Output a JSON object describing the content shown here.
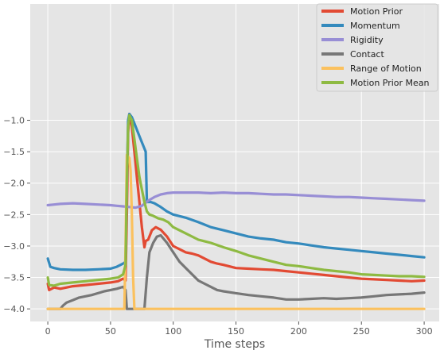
{
  "chart_data": {
    "type": "line",
    "title": "",
    "xlabel": "Time steps",
    "ylabel": "",
    "xlim": [
      -14,
      312
    ],
    "ylim": [
      -4.2,
      0.85
    ],
    "x_ticks": [
      0,
      50,
      100,
      150,
      200,
      250,
      300
    ],
    "x_tick_labels": [
      "0",
      "50",
      "100",
      "150",
      "200",
      "250",
      "300"
    ],
    "y_ticks": [
      -4.0,
      -3.5,
      -3.0,
      -2.5,
      -2.0,
      -1.5,
      -1.0
    ],
    "y_tick_labels": [
      "−4.0",
      "−3.5",
      "−3.0",
      "−2.5",
      "−2.0",
      "−1.5",
      "−1.0"
    ],
    "grid": true,
    "legend_position": "top-right",
    "style": "ggplot",
    "background_color": "#E5E5E5",
    "grid_color": "#FFFFFF",
    "series": [
      {
        "name": "Motion Prior",
        "color": "#E24A33",
        "points": [
          [
            0,
            -3.6
          ],
          [
            1,
            -3.7
          ],
          [
            5,
            -3.66
          ],
          [
            10,
            -3.68
          ],
          [
            20,
            -3.64
          ],
          [
            30,
            -3.62
          ],
          [
            40,
            -3.6
          ],
          [
            50,
            -3.58
          ],
          [
            56,
            -3.56
          ],
          [
            60,
            -3.52
          ],
          [
            62,
            -3.55
          ],
          [
            63,
            -2.5
          ],
          [
            64,
            -1.2
          ],
          [
            65,
            -0.9
          ],
          [
            67,
            -1.1
          ],
          [
            69,
            -1.5
          ],
          [
            71,
            -1.9
          ],
          [
            73,
            -2.3
          ],
          [
            75,
            -2.7
          ],
          [
            77,
            -3.02
          ],
          [
            78,
            -2.92
          ],
          [
            80,
            -2.9
          ],
          [
            83,
            -2.75
          ],
          [
            86,
            -2.7
          ],
          [
            90,
            -2.74
          ],
          [
            95,
            -2.85
          ],
          [
            100,
            -3.0
          ],
          [
            105,
            -3.05
          ],
          [
            110,
            -3.1
          ],
          [
            115,
            -3.12
          ],
          [
            120,
            -3.15
          ],
          [
            125,
            -3.2
          ],
          [
            130,
            -3.25
          ],
          [
            135,
            -3.28
          ],
          [
            140,
            -3.3
          ],
          [
            150,
            -3.35
          ],
          [
            160,
            -3.36
          ],
          [
            170,
            -3.37
          ],
          [
            180,
            -3.38
          ],
          [
            190,
            -3.4
          ],
          [
            200,
            -3.42
          ],
          [
            210,
            -3.44
          ],
          [
            220,
            -3.46
          ],
          [
            230,
            -3.48
          ],
          [
            240,
            -3.5
          ],
          [
            250,
            -3.52
          ],
          [
            260,
            -3.53
          ],
          [
            270,
            -3.54
          ],
          [
            280,
            -3.55
          ],
          [
            290,
            -3.56
          ],
          [
            300,
            -3.55
          ]
        ]
      },
      {
        "name": "Momentum",
        "color": "#348ABD",
        "points": [
          [
            0,
            -3.2
          ],
          [
            2,
            -3.33
          ],
          [
            5,
            -3.35
          ],
          [
            10,
            -3.37
          ],
          [
            20,
            -3.38
          ],
          [
            30,
            -3.38
          ],
          [
            40,
            -3.37
          ],
          [
            50,
            -3.36
          ],
          [
            55,
            -3.33
          ],
          [
            60,
            -3.28
          ],
          [
            62,
            -3.25
          ],
          [
            63,
            -2.0
          ],
          [
            64,
            -1.0
          ],
          [
            65,
            -0.9
          ],
          [
            67,
            -0.95
          ],
          [
            69,
            -1.05
          ],
          [
            71,
            -1.15
          ],
          [
            74,
            -1.3
          ],
          [
            76,
            -1.4
          ],
          [
            78,
            -1.5
          ],
          [
            79,
            -2.3
          ],
          [
            82,
            -2.3
          ],
          [
            85,
            -2.32
          ],
          [
            90,
            -2.38
          ],
          [
            95,
            -2.45
          ],
          [
            100,
            -2.5
          ],
          [
            110,
            -2.55
          ],
          [
            120,
            -2.62
          ],
          [
            130,
            -2.7
          ],
          [
            140,
            -2.75
          ],
          [
            150,
            -2.8
          ],
          [
            160,
            -2.85
          ],
          [
            170,
            -2.88
          ],
          [
            180,
            -2.9
          ],
          [
            190,
            -2.94
          ],
          [
            200,
            -2.96
          ],
          [
            210,
            -2.99
          ],
          [
            220,
            -3.02
          ],
          [
            230,
            -3.04
          ],
          [
            240,
            -3.06
          ],
          [
            250,
            -3.08
          ],
          [
            260,
            -3.1
          ],
          [
            270,
            -3.12
          ],
          [
            280,
            -3.14
          ],
          [
            290,
            -3.16
          ],
          [
            300,
            -3.18
          ]
        ]
      },
      {
        "name": "Rigidity",
        "color": "#988ED5",
        "points": [
          [
            0,
            -2.35
          ],
          [
            5,
            -2.34
          ],
          [
            10,
            -2.33
          ],
          [
            20,
            -2.32
          ],
          [
            30,
            -2.33
          ],
          [
            40,
            -2.34
          ],
          [
            50,
            -2.35
          ],
          [
            55,
            -2.36
          ],
          [
            60,
            -2.37
          ],
          [
            65,
            -2.38
          ],
          [
            70,
            -2.39
          ],
          [
            75,
            -2.36
          ],
          [
            80,
            -2.28
          ],
          [
            85,
            -2.22
          ],
          [
            90,
            -2.18
          ],
          [
            95,
            -2.16
          ],
          [
            100,
            -2.15
          ],
          [
            110,
            -2.15
          ],
          [
            120,
            -2.15
          ],
          [
            130,
            -2.16
          ],
          [
            140,
            -2.15
          ],
          [
            150,
            -2.16
          ],
          [
            160,
            -2.16
          ],
          [
            170,
            -2.17
          ],
          [
            180,
            -2.18
          ],
          [
            190,
            -2.18
          ],
          [
            200,
            -2.19
          ],
          [
            210,
            -2.2
          ],
          [
            220,
            -2.21
          ],
          [
            230,
            -2.22
          ],
          [
            240,
            -2.22
          ],
          [
            250,
            -2.23
          ],
          [
            260,
            -2.24
          ],
          [
            270,
            -2.25
          ],
          [
            280,
            -2.26
          ],
          [
            290,
            -2.27
          ],
          [
            300,
            -2.28
          ]
        ]
      },
      {
        "name": "Contact",
        "color": "#777777",
        "points": [
          [
            0,
            -4.0
          ],
          [
            10,
            -4.0
          ],
          [
            12,
            -3.95
          ],
          [
            15,
            -3.9
          ],
          [
            20,
            -3.86
          ],
          [
            25,
            -3.82
          ],
          [
            30,
            -3.8
          ],
          [
            35,
            -3.78
          ],
          [
            40,
            -3.75
          ],
          [
            45,
            -3.72
          ],
          [
            50,
            -3.7
          ],
          [
            55,
            -3.68
          ],
          [
            60,
            -3.65
          ],
          [
            62,
            -3.7
          ],
          [
            63,
            -4.0
          ],
          [
            75,
            -4.0
          ],
          [
            77,
            -4.0
          ],
          [
            79,
            -3.5
          ],
          [
            81,
            -3.1
          ],
          [
            84,
            -2.95
          ],
          [
            87,
            -2.85
          ],
          [
            90,
            -2.83
          ],
          [
            95,
            -2.95
          ],
          [
            100,
            -3.1
          ],
          [
            105,
            -3.25
          ],
          [
            110,
            -3.35
          ],
          [
            115,
            -3.45
          ],
          [
            120,
            -3.55
          ],
          [
            125,
            -3.6
          ],
          [
            130,
            -3.65
          ],
          [
            135,
            -3.7
          ],
          [
            140,
            -3.72
          ],
          [
            150,
            -3.75
          ],
          [
            160,
            -3.78
          ],
          [
            170,
            -3.8
          ],
          [
            180,
            -3.82
          ],
          [
            190,
            -3.85
          ],
          [
            200,
            -3.85
          ],
          [
            210,
            -3.84
          ],
          [
            220,
            -3.83
          ],
          [
            230,
            -3.84
          ],
          [
            240,
            -3.83
          ],
          [
            250,
            -3.82
          ],
          [
            260,
            -3.8
          ],
          [
            270,
            -3.78
          ],
          [
            280,
            -3.77
          ],
          [
            290,
            -3.76
          ],
          [
            300,
            -3.74
          ]
        ]
      },
      {
        "name": "Range of Motion",
        "color": "#FBC15E",
        "points": [
          [
            0,
            -4.0
          ],
          [
            61,
            -4.0
          ],
          [
            62,
            -3.0
          ],
          [
            63,
            -1.55
          ],
          [
            65,
            -1.6
          ],
          [
            66,
            -1.8
          ],
          [
            67,
            -2.5
          ],
          [
            68,
            -3.5
          ],
          [
            69,
            -4.0
          ],
          [
            300,
            -4.0
          ]
        ]
      },
      {
        "name": "Motion Prior Mean",
        "color": "#8EBA42",
        "points": [
          [
            0,
            -3.5
          ],
          [
            1,
            -3.62
          ],
          [
            5,
            -3.63
          ],
          [
            10,
            -3.6
          ],
          [
            20,
            -3.58
          ],
          [
            30,
            -3.56
          ],
          [
            40,
            -3.54
          ],
          [
            50,
            -3.52
          ],
          [
            56,
            -3.5
          ],
          [
            60,
            -3.45
          ],
          [
            62,
            -3.3
          ],
          [
            63,
            -2.0
          ],
          [
            64,
            -1.1
          ],
          [
            65,
            -0.92
          ],
          [
            67,
            -1.0
          ],
          [
            69,
            -1.3
          ],
          [
            71,
            -1.6
          ],
          [
            73,
            -1.9
          ],
          [
            75,
            -2.1
          ],
          [
            77,
            -2.3
          ],
          [
            79,
            -2.45
          ],
          [
            81,
            -2.5
          ],
          [
            84,
            -2.52
          ],
          [
            88,
            -2.56
          ],
          [
            92,
            -2.58
          ],
          [
            96,
            -2.62
          ],
          [
            100,
            -2.7
          ],
          [
            110,
            -2.8
          ],
          [
            120,
            -2.9
          ],
          [
            130,
            -2.95
          ],
          [
            140,
            -3.02
          ],
          [
            150,
            -3.08
          ],
          [
            160,
            -3.15
          ],
          [
            170,
            -3.2
          ],
          [
            180,
            -3.25
          ],
          [
            190,
            -3.3
          ],
          [
            200,
            -3.32
          ],
          [
            210,
            -3.35
          ],
          [
            220,
            -3.38
          ],
          [
            230,
            -3.4
          ],
          [
            240,
            -3.42
          ],
          [
            250,
            -3.45
          ],
          [
            260,
            -3.46
          ],
          [
            270,
            -3.47
          ],
          [
            280,
            -3.48
          ],
          [
            290,
            -3.48
          ],
          [
            300,
            -3.49
          ]
        ]
      }
    ]
  }
}
